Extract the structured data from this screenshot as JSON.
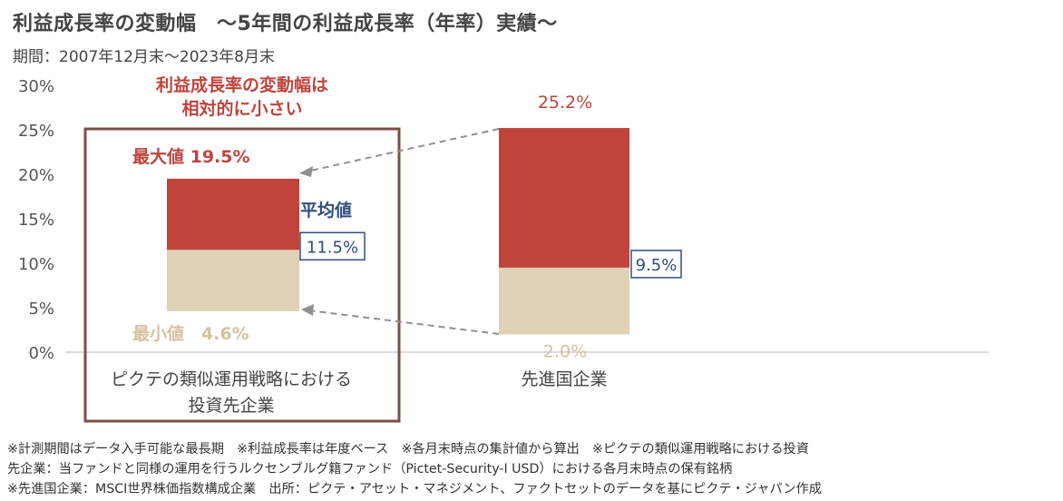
{
  "title": "利益成長率の変動幅　～5年間の利益成長率（年率）実績～",
  "period": "期間：2007年12月末～2023年8月末",
  "colors": {
    "max": "#c0443c",
    "min": "#e0d2b6",
    "avg": "#2f4f7f",
    "frame": "#7b4f45",
    "axis": "#d0d0d0"
  },
  "callout": {
    "line1": "利益成長率の変動幅は",
    "line2": "相対的に小さい"
  },
  "chart_data": {
    "type": "bar",
    "categories": [
      "ピクテの類似運用戦略における投資先企業",
      "先進国企業"
    ],
    "category_lines": [
      [
        "ピクテの類似運用戦略における",
        "投資先企業"
      ],
      [
        "先進国企業"
      ]
    ],
    "yticks": [
      "0%",
      "5%",
      "10%",
      "15%",
      "20%",
      "25%",
      "30%"
    ],
    "ylim": [
      0,
      30
    ],
    "series": [
      {
        "name": "最大値",
        "values": [
          19.5,
          25.2
        ]
      },
      {
        "name": "平均値",
        "values": [
          11.5,
          9.5
        ]
      },
      {
        "name": "最小値",
        "values": [
          4.6,
          2.0
        ]
      }
    ],
    "labels": {
      "max": [
        "最大値 19.5%",
        "25.2%"
      ],
      "avg_title": "平均値",
      "avg": [
        "11.5%",
        "9.5%"
      ],
      "min": [
        "最小値　4.6%",
        "2.0%"
      ]
    }
  },
  "notes": [
    "※計測期間はデータ入手可能な最長期　※利益成長率は年度ベース　※各月末時点の集計値から算出　※ピクテの類似運用戦略における投資",
    "先企業：当ファンドと同様の運用を行うルクセンブルグ籍ファンド（Pictet-Security-I USD）における各月末時点の保有銘柄",
    "※先進国企業：MSCI世界株価指数構成企業　出所：ピクテ・アセット・マネジメント、ファクトセットのデータを基にピクテ・ジャパン作成"
  ]
}
